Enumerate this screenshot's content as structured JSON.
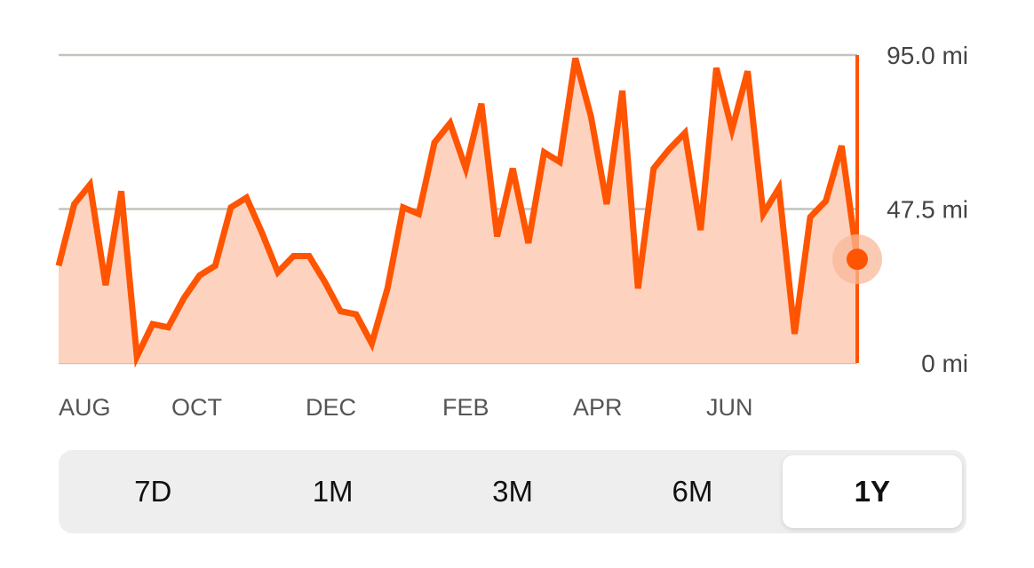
{
  "chart_data": {
    "type": "area",
    "y_axis": {
      "range": [
        0,
        95
      ],
      "position": "right",
      "ticks": [
        {
          "value": 95,
          "label": "95.0 mi"
        },
        {
          "value": 47.5,
          "label": "47.5 mi"
        },
        {
          "value": 0,
          "label": "0 mi"
        }
      ]
    },
    "x_tick_labels": [
      "AUG",
      "OCT",
      "DEC",
      "FEB",
      "APR",
      "JUN"
    ],
    "grid": true,
    "values": [
      30,
      49,
      55,
      24,
      53,
      2,
      12,
      11,
      20,
      27,
      30,
      48,
      51,
      40,
      28,
      33,
      33,
      25,
      16,
      15,
      6,
      23,
      48,
      46,
      68,
      74,
      60,
      80,
      39,
      60,
      37,
      65,
      62,
      94,
      76,
      49,
      84,
      23,
      60,
      66,
      71,
      41,
      91,
      72,
      90,
      46,
      54,
      9,
      45,
      50,
      67,
      32
    ],
    "selected_index": 51,
    "colors": {
      "line": "#ff5400",
      "fill": "#fdd2bf",
      "grid": "#c4c4bd",
      "marker_halo": "#f8b898"
    }
  },
  "range_selector": {
    "options": [
      "7D",
      "1M",
      "3M",
      "6M",
      "1Y"
    ],
    "selected": "1Y"
  }
}
